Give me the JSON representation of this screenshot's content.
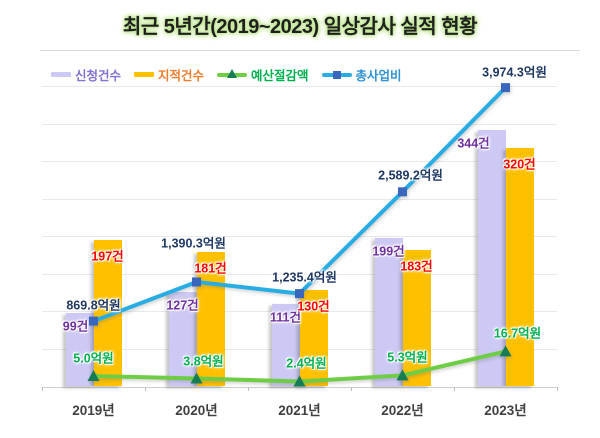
{
  "title": "최근 5년간(2019~2023) 일상감사 실적 현황",
  "legend_labels": [
    "신청건수",
    "지적건수",
    "예산절감액",
    "총사업비"
  ],
  "colors": {
    "applications_bar": "#cdc9f5",
    "findings_bar": "#ffc000",
    "savings_line": "#6fcd45",
    "savings_marker": "#157c55",
    "total_line": "#27ace4",
    "total_marker": "#3a67be",
    "applications_label": "#7030a0",
    "findings_label": "#ff0000",
    "savings_label": "#00b050",
    "total_label": "#1f3864",
    "legend_applications_text": "#8273d3",
    "legend_findings_text": "#ed7d31",
    "legend_savings_text": "#00b050",
    "legend_total_text": "#2f93d4"
  },
  "chart_data": {
    "type": "bar",
    "subtype": "combo-bar-line",
    "title": "최근 5년간(2019~2023) 일상감사 실적 현황",
    "categories": [
      "2019년",
      "2020년",
      "2021년",
      "2022년",
      "2023년"
    ],
    "series": [
      {
        "key": "applications",
        "name": "신청건수",
        "type": "bar",
        "unit": "건",
        "color": "#cdc9f5",
        "label_color": "#7030a0",
        "values": [
          99,
          127,
          111,
          199,
          344
        ],
        "labels": [
          "99건",
          "127건",
          "111건",
          "199건",
          "344건"
        ]
      },
      {
        "key": "findings",
        "name": "지적건수",
        "type": "bar",
        "unit": "건",
        "color": "#ffc000",
        "label_color": "#ff0000",
        "values": [
          197,
          181,
          130,
          183,
          320
        ],
        "labels": [
          "197건",
          "181건",
          "130건",
          "183건",
          "320건"
        ]
      },
      {
        "key": "savings",
        "name": "예산절감액",
        "type": "line",
        "unit": "억원",
        "color": "#6fcd45",
        "marker": "triangle",
        "marker_color": "#157c55",
        "label_color": "#00b050",
        "values": [
          5.0,
          3.8,
          2.4,
          5.3,
          16.7
        ],
        "labels": [
          "5.0억원",
          "3.8억원",
          "2.4억원",
          "5.3억원",
          "16.7억원"
        ]
      },
      {
        "key": "total-cost",
        "name": "총사업비",
        "type": "line",
        "unit": "억원",
        "color": "#27ace4",
        "marker": "square",
        "marker_color": "#3a67be",
        "label_color": "#1f3864",
        "values": [
          869.8,
          1390.3,
          1235.4,
          2589.2,
          3974.3
        ],
        "labels": [
          "869.8억원",
          "1,390.3억원",
          "1,235.4억원",
          "2,589.2억원",
          "3,974.3억원"
        ]
      }
    ],
    "xlabel": "",
    "ylabel": "",
    "y_axis_labels_visible": false,
    "gridlines": true,
    "gridline_count": 9,
    "legend_position": "top"
  }
}
